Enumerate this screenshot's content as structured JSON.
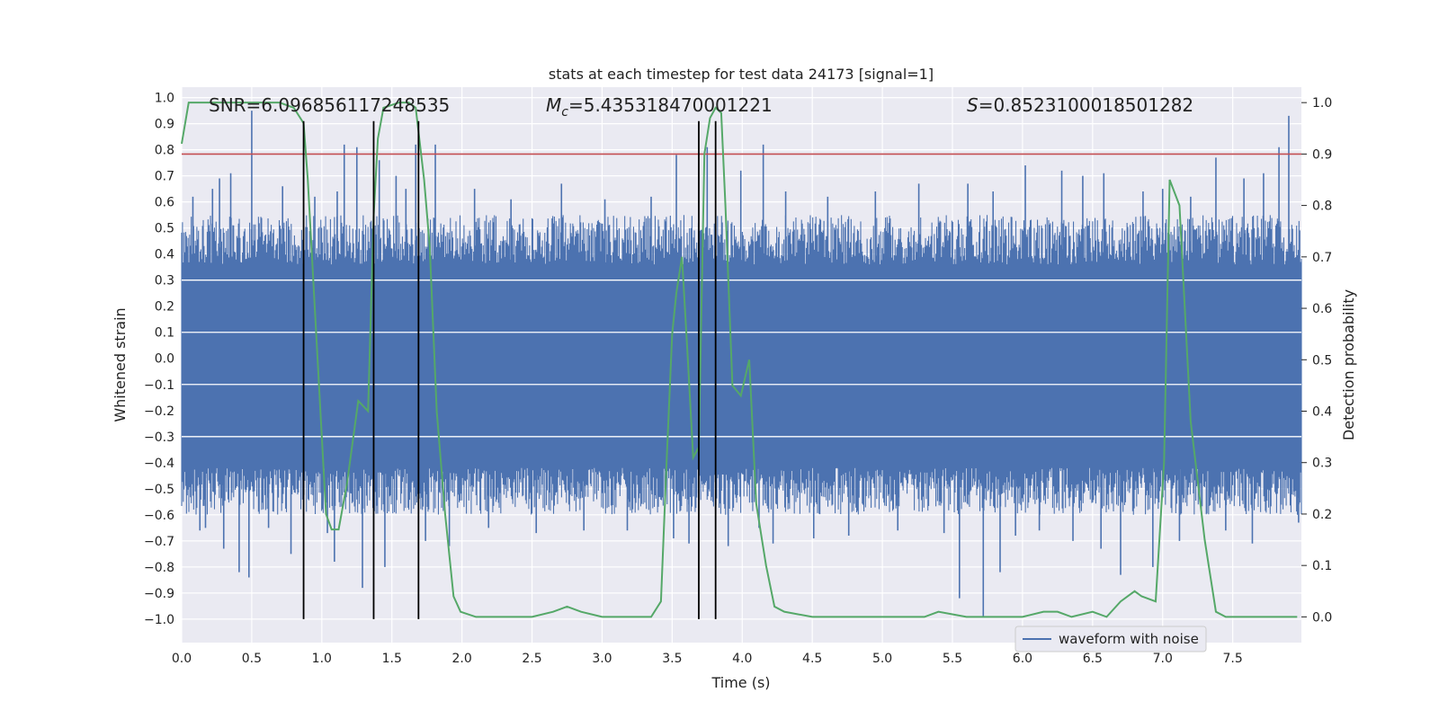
{
  "chart_data": {
    "type": "line",
    "title": "stats at each timestep for test data 24173 [signal=1]",
    "xlabel": "Time (s)",
    "ylabel_left": "Whitened strain",
    "ylabel_right": "Detection probability",
    "xlim": [
      0.0,
      7.99
    ],
    "ylim_left": [
      -1.09,
      1.04
    ],
    "ylim_right": [
      -0.05,
      1.03
    ],
    "xticks": [
      "0.0",
      "0.5",
      "1.0",
      "1.5",
      "2.0",
      "2.5",
      "3.0",
      "3.5",
      "4.0",
      "4.5",
      "5.0",
      "5.5",
      "6.0",
      "6.5",
      "7.0",
      "7.5"
    ],
    "yticks_left": [
      "1.0",
      "0.9",
      "0.8",
      "0.7",
      "0.6",
      "0.5",
      "0.4",
      "0.3",
      "0.2",
      "0.1",
      "0.0",
      "−0.1",
      "−0.2",
      "−0.3",
      "−0.4",
      "−0.5",
      "−0.6",
      "−0.7",
      "−0.8",
      "−0.9",
      "−1.0"
    ],
    "yticks_right": [
      "1.0",
      "0.9",
      "0.8",
      "0.7",
      "0.6",
      "0.5",
      "0.4",
      "0.3",
      "0.2",
      "0.1",
      "0.0"
    ],
    "grid": true,
    "legend": {
      "placement": "bottom-right",
      "entries": [
        "waveform with noise"
      ]
    },
    "annotations": {
      "snr": "SNR=6.096856117248535",
      "mc_symbol": "M",
      "mc_sub": "c",
      "mc_value": "=5.435318470001221",
      "s_symbol": "S",
      "s_value": "=0.8523100018501282"
    },
    "threshold": {
      "value": 0.9,
      "axis": "right",
      "color": "#c44e52"
    },
    "vertical_markers": [
      0.87,
      1.37,
      1.69,
      3.69,
      3.81
    ],
    "waveform": {
      "name": "waveform with noise",
      "color": "#4c72b0",
      "core_range": [
        -0.42,
        0.36
      ],
      "envelope_range": [
        -0.6,
        0.55
      ],
      "spikes": [
        [
          0.08,
          0.62
        ],
        [
          0.13,
          -0.66
        ],
        [
          0.17,
          -0.65
        ],
        [
          0.22,
          0.65
        ],
        [
          0.27,
          0.69
        ],
        [
          0.3,
          -0.73
        ],
        [
          0.35,
          0.71
        ],
        [
          0.41,
          -0.82
        ],
        [
          0.48,
          -0.84
        ],
        [
          0.5,
          0.95
        ],
        [
          0.62,
          -0.65
        ],
        [
          0.72,
          0.66
        ],
        [
          0.78,
          -0.75
        ],
        [
          0.95,
          0.62
        ],
        [
          1.04,
          -0.67
        ],
        [
          1.09,
          -0.78
        ],
        [
          1.11,
          0.64
        ],
        [
          1.16,
          0.82
        ],
        [
          1.25,
          0.81
        ],
        [
          1.29,
          -0.88
        ],
        [
          1.41,
          0.76
        ],
        [
          1.45,
          -0.8
        ],
        [
          1.53,
          0.7
        ],
        [
          1.6,
          0.65
        ],
        [
          1.67,
          0.82
        ],
        [
          1.74,
          -0.7
        ],
        [
          1.81,
          0.82
        ],
        [
          1.91,
          -0.72
        ],
        [
          2.09,
          0.65
        ],
        [
          2.19,
          -0.65
        ],
        [
          2.35,
          0.61
        ],
        [
          2.53,
          -0.67
        ],
        [
          2.71,
          0.67
        ],
        [
          2.87,
          -0.66
        ],
        [
          3.02,
          0.61
        ],
        [
          3.18,
          -0.66
        ],
        [
          3.35,
          0.62
        ],
        [
          3.51,
          -0.69
        ],
        [
          3.53,
          0.78
        ],
        [
          3.62,
          -0.71
        ],
        [
          3.75,
          0.81
        ],
        [
          3.9,
          -0.72
        ],
        [
          3.99,
          0.72
        ],
        [
          4.12,
          -0.65
        ],
        [
          4.15,
          0.82
        ],
        [
          4.22,
          -0.71
        ],
        [
          4.31,
          0.64
        ],
        [
          4.51,
          -0.69
        ],
        [
          4.61,
          0.62
        ],
        [
          4.76,
          -0.68
        ],
        [
          4.95,
          0.64
        ],
        [
          5.11,
          -0.66
        ],
        [
          5.26,
          0.67
        ],
        [
          5.44,
          -0.67
        ],
        [
          5.55,
          -0.92
        ],
        [
          5.61,
          0.67
        ],
        [
          5.72,
          -0.99
        ],
        [
          5.79,
          0.64
        ],
        [
          5.84,
          -0.82
        ],
        [
          5.95,
          -0.68
        ],
        [
          6.02,
          0.74
        ],
        [
          6.12,
          -0.66
        ],
        [
          6.28,
          0.72
        ],
        [
          6.36,
          -0.7
        ],
        [
          6.43,
          0.7
        ],
        [
          6.56,
          -0.73
        ],
        [
          6.58,
          0.71
        ],
        [
          6.7,
          -0.83
        ],
        [
          6.86,
          0.64
        ],
        [
          6.93,
          -0.8
        ],
        [
          7.0,
          0.65
        ],
        [
          7.12,
          -0.7
        ],
        [
          7.2,
          0.62
        ],
        [
          7.38,
          0.77
        ],
        [
          7.45,
          -0.66
        ],
        [
          7.58,
          0.69
        ],
        [
          7.64,
          -0.71
        ],
        [
          7.72,
          0.71
        ],
        [
          7.83,
          0.81
        ],
        [
          7.9,
          0.93
        ],
        [
          7.97,
          -0.63
        ]
      ]
    },
    "probability": {
      "color": "#55a868",
      "points": [
        [
          0.0,
          0.92
        ],
        [
          0.05,
          1.0
        ],
        [
          0.15,
          1.0
        ],
        [
          0.3,
          1.0
        ],
        [
          0.5,
          1.0
        ],
        [
          0.7,
          1.0
        ],
        [
          0.8,
          0.99
        ],
        [
          0.87,
          0.96
        ],
        [
          0.9,
          0.85
        ],
        [
          0.95,
          0.6
        ],
        [
          1.0,
          0.35
        ],
        [
          1.03,
          0.2
        ],
        [
          1.07,
          0.17
        ],
        [
          1.12,
          0.17
        ],
        [
          1.18,
          0.26
        ],
        [
          1.26,
          0.42
        ],
        [
          1.33,
          0.4
        ],
        [
          1.37,
          0.78
        ],
        [
          1.4,
          0.93
        ],
        [
          1.44,
          0.99
        ],
        [
          1.55,
          1.0
        ],
        [
          1.62,
          1.0
        ],
        [
          1.67,
          0.99
        ],
        [
          1.73,
          0.85
        ],
        [
          1.77,
          0.72
        ],
        [
          1.82,
          0.4
        ],
        [
          1.88,
          0.2
        ],
        [
          1.94,
          0.04
        ],
        [
          1.99,
          0.01
        ],
        [
          2.1,
          0.0
        ],
        [
          2.3,
          0.0
        ],
        [
          2.5,
          0.0
        ],
        [
          2.65,
          0.01
        ],
        [
          2.75,
          0.02
        ],
        [
          2.85,
          0.01
        ],
        [
          3.0,
          0.0
        ],
        [
          3.2,
          0.0
        ],
        [
          3.35,
          0.0
        ],
        [
          3.42,
          0.03
        ],
        [
          3.46,
          0.3
        ],
        [
          3.5,
          0.55
        ],
        [
          3.53,
          0.63
        ],
        [
          3.57,
          0.7
        ],
        [
          3.61,
          0.51
        ],
        [
          3.65,
          0.31
        ],
        [
          3.69,
          0.33
        ],
        [
          3.73,
          0.9
        ],
        [
          3.77,
          0.97
        ],
        [
          3.81,
          0.99
        ],
        [
          3.85,
          0.98
        ],
        [
          3.88,
          0.8
        ],
        [
          3.93,
          0.45
        ],
        [
          3.99,
          0.43
        ],
        [
          4.05,
          0.5
        ],
        [
          4.1,
          0.22
        ],
        [
          4.17,
          0.1
        ],
        [
          4.23,
          0.02
        ],
        [
          4.3,
          0.01
        ],
        [
          4.5,
          0.0
        ],
        [
          4.8,
          0.0
        ],
        [
          5.0,
          0.0
        ],
        [
          5.3,
          0.0
        ],
        [
          5.4,
          0.01
        ],
        [
          5.6,
          0.0
        ],
        [
          5.8,
          0.0
        ],
        [
          6.0,
          0.0
        ],
        [
          6.15,
          0.01
        ],
        [
          6.25,
          0.01
        ],
        [
          6.35,
          0.0
        ],
        [
          6.5,
          0.01
        ],
        [
          6.6,
          0.0
        ],
        [
          6.7,
          0.03
        ],
        [
          6.8,
          0.05
        ],
        [
          6.85,
          0.04
        ],
        [
          6.95,
          0.03
        ],
        [
          7.01,
          0.3
        ],
        [
          7.05,
          0.85
        ],
        [
          7.12,
          0.8
        ],
        [
          7.2,
          0.38
        ],
        [
          7.3,
          0.15
        ],
        [
          7.38,
          0.01
        ],
        [
          7.45,
          0.0
        ],
        [
          7.6,
          0.0
        ],
        [
          7.8,
          0.0
        ],
        [
          7.96,
          0.0
        ]
      ]
    }
  }
}
